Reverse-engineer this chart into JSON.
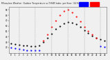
{
  "title": "Milwaukee Weather  Outdoor Temperature vs THSW Index per Hour (24 Hours)",
  "hours": [
    0,
    1,
    2,
    3,
    4,
    5,
    6,
    7,
    8,
    9,
    10,
    11,
    12,
    13,
    14,
    15,
    16,
    17,
    18,
    19,
    20,
    21,
    22,
    23
  ],
  "temp": [
    28,
    26,
    25,
    24,
    23,
    22,
    22,
    23,
    30,
    38,
    46,
    54,
    60,
    65,
    67,
    66,
    63,
    58,
    52,
    47,
    42,
    38,
    35,
    32
  ],
  "thsw": [
    null,
    null,
    null,
    null,
    null,
    null,
    null,
    null,
    32,
    44,
    58,
    70,
    80,
    88,
    90,
    85,
    78,
    68,
    58,
    50,
    44,
    38,
    null,
    null
  ],
  "blue_series": [
    20,
    18,
    17,
    16,
    15,
    14,
    14,
    15,
    null,
    null,
    null,
    null,
    null,
    null,
    null,
    null,
    null,
    null,
    null,
    null,
    null,
    null,
    22,
    21
  ],
  "temp_color": "#000000",
  "thsw_color": "#ff0000",
  "blue_color": "#0000ff",
  "bg_color": "#f0f0f0",
  "grid_color": "#888888",
  "ylim": [
    10,
    95
  ],
  "xlim": [
    -0.5,
    23.5
  ],
  "legend_blue_color": "#0000ff",
  "legend_red_color": "#ff0000",
  "tick_labels": [
    "0",
    "1",
    "2",
    "3",
    "4",
    "5",
    "6",
    "7",
    "8",
    "9",
    "10",
    "11",
    "12",
    "13",
    "14",
    "15",
    "16",
    "17",
    "18",
    "19",
    "20",
    "21",
    "22",
    "23"
  ],
  "ytick_vals": [
    20,
    30,
    40,
    50,
    60,
    70,
    80,
    90
  ],
  "ytick_labels": [
    "20",
    "30",
    "40",
    "50",
    "60",
    "70",
    "80",
    "90"
  ],
  "vgrid_positions": [
    2,
    6,
    10,
    14,
    18,
    22
  ],
  "marker_size": 1.2
}
